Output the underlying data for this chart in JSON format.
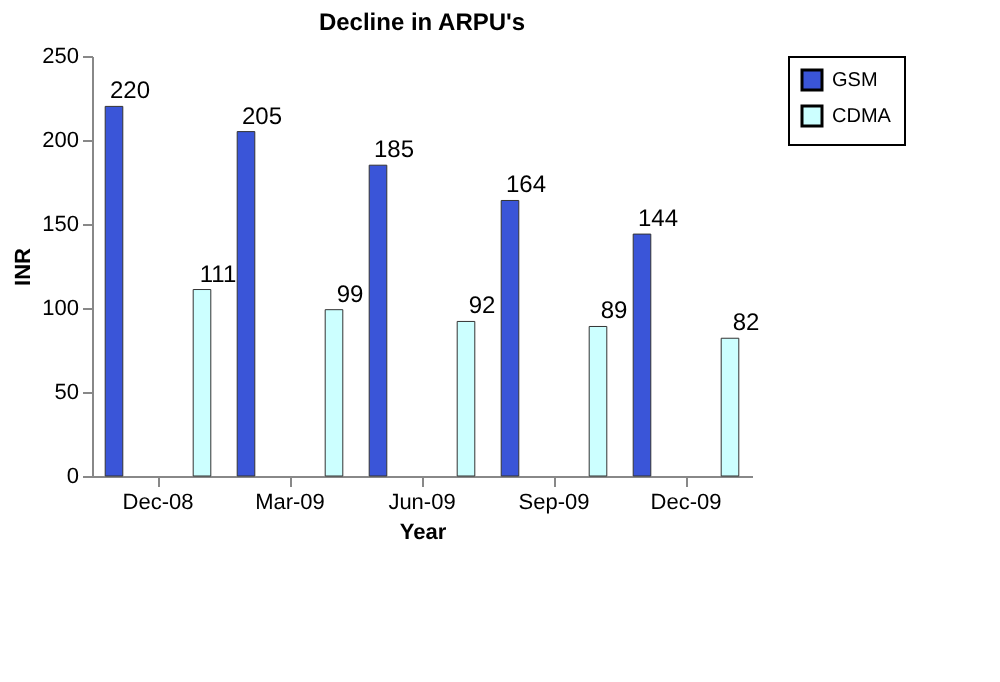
{
  "chart_data": {
    "type": "bar",
    "title": "Decline in ARPU's",
    "xlabel": "Year",
    "ylabel": "INR",
    "categories": [
      "Dec-08",
      "Mar-09",
      "Jun-09",
      "Sep-09",
      "Dec-09"
    ],
    "series": [
      {
        "name": "GSM",
        "color": "#3a55d8",
        "values": [
          220,
          205,
          185,
          164,
          144
        ]
      },
      {
        "name": "CDMA",
        "color": "#ccffff",
        "values": [
          111,
          99,
          92,
          89,
          82
        ]
      }
    ],
    "ylim": [
      0,
      250
    ],
    "yticks": [
      0,
      50,
      100,
      150,
      200,
      250
    ],
    "data_labels": true,
    "legend": "right",
    "grid": false
  }
}
